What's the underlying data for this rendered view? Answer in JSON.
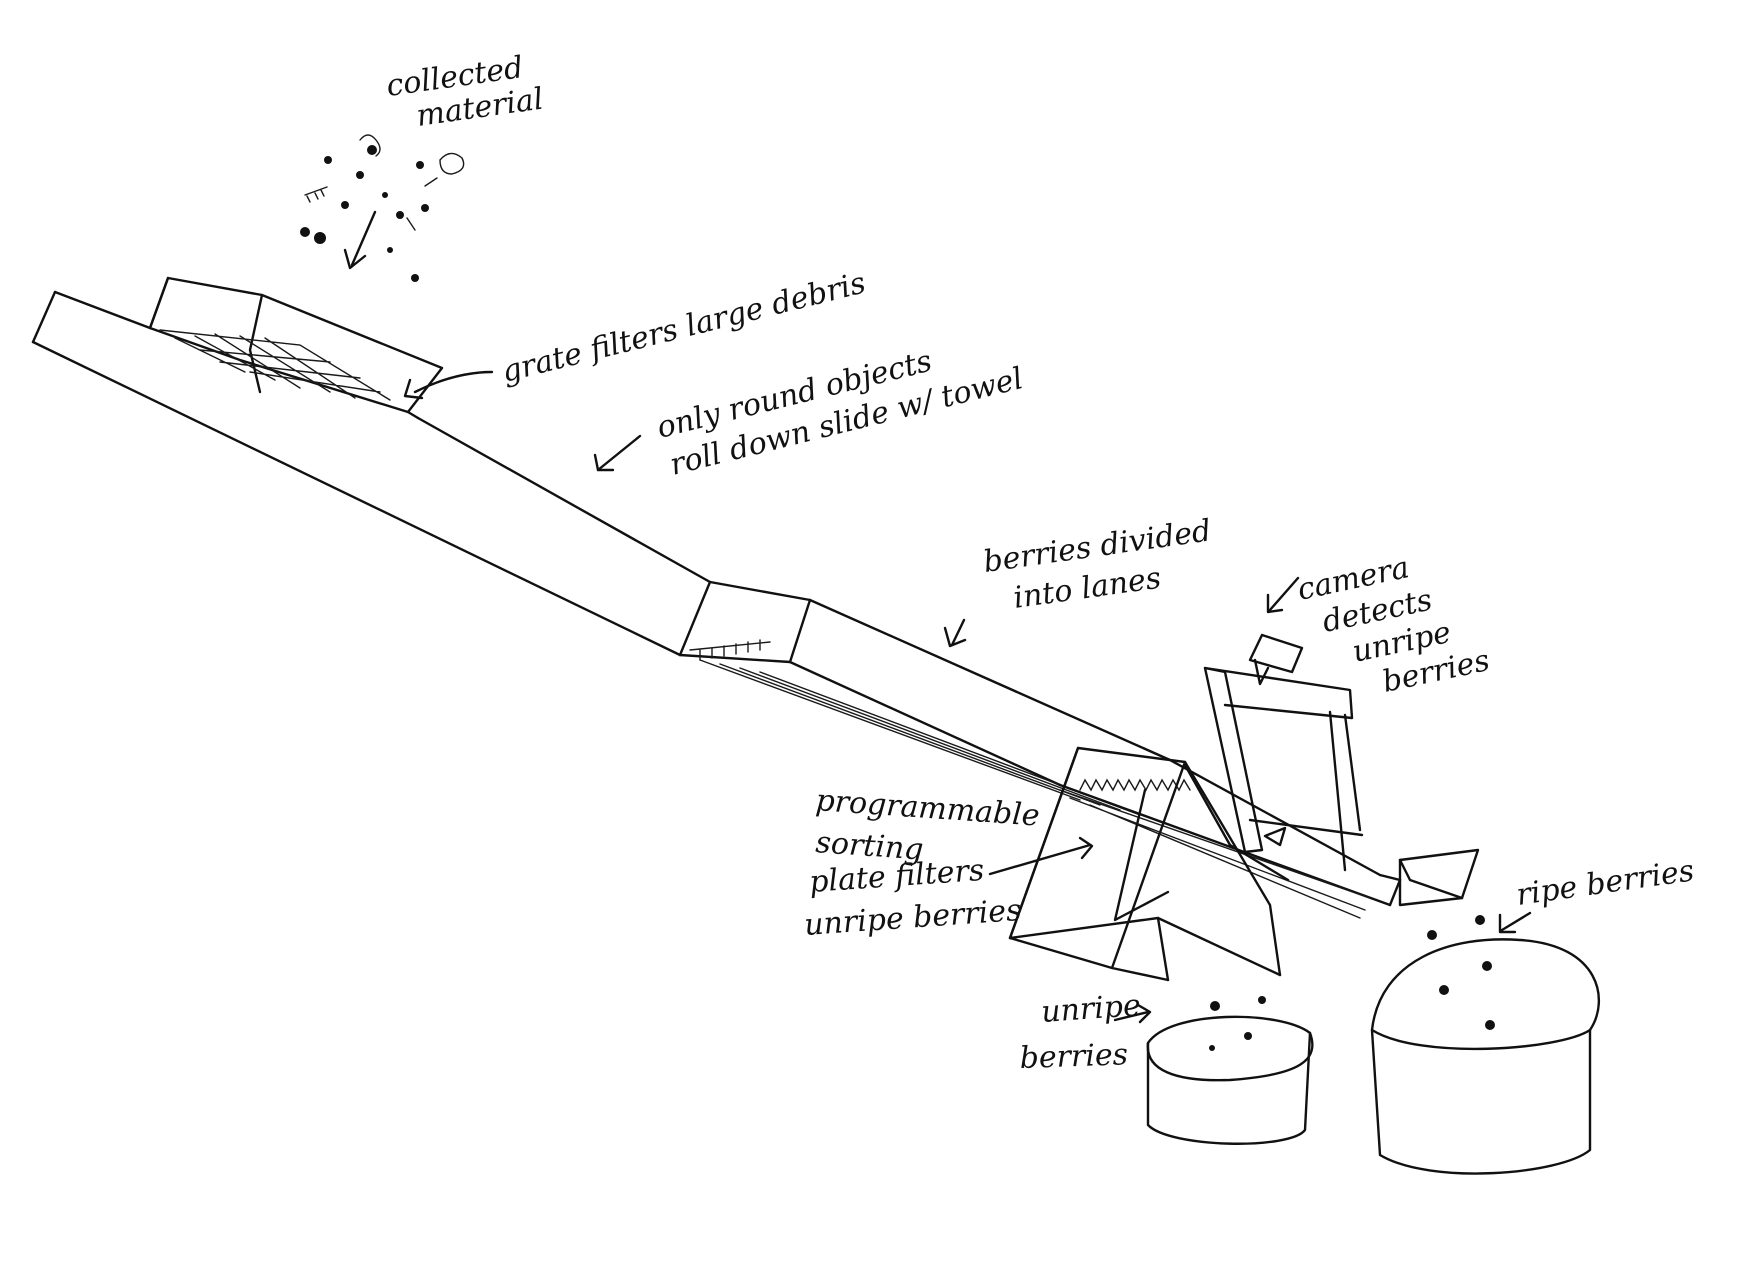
{
  "sketch": {
    "ink_color": "#111111",
    "paper_color": "#ffffff",
    "labels": {
      "collected_material_1": "collected",
      "collected_material_2": "material",
      "grate": "grate filters large debris",
      "slide_1": "only round objects",
      "slide_2": "roll down slide w/ towel",
      "lanes_1": "berries divided",
      "lanes_2": "into lanes",
      "camera_1": "camera",
      "camera_2": "detects",
      "camera_3": "unripe",
      "camera_4": "berries",
      "plate_1": "programmable",
      "plate_2": "sorting",
      "plate_3": "plate filters",
      "plate_4": "unripe berries",
      "ripe": "ripe berries",
      "unripe_bin_1": "unripe",
      "unripe_bin_2": "berries"
    }
  }
}
